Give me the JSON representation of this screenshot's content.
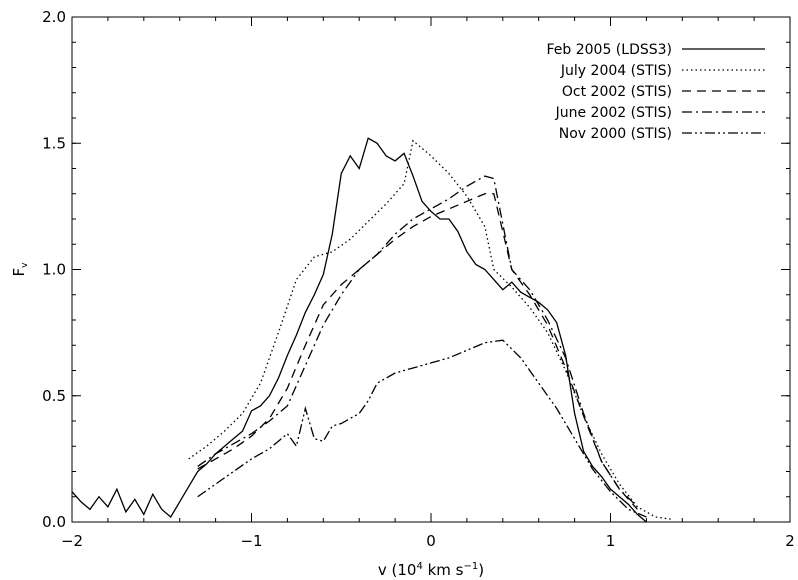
{
  "chart_data": {
    "type": "line",
    "title": "",
    "xlabel_prefix": "v (10",
    "xlabel_exp1": "4",
    "xlabel_mid": " km s",
    "xlabel_exp2": "−1",
    "xlabel_suffix": ")",
    "ylabel_main": "F",
    "ylabel_sub": "v",
    "xlim": [
      -2,
      2
    ],
    "ylim": [
      0,
      2
    ],
    "x_ticks": [
      -2,
      -1,
      0,
      1,
      2
    ],
    "x_tick_labels": [
      "−2",
      "−1",
      "0",
      "1",
      "2"
    ],
    "y_ticks": [
      0,
      0.5,
      1,
      1.5,
      2
    ],
    "y_tick_labels": [
      "0.0",
      "0.5",
      "1.0",
      "1.5",
      "2.0"
    ],
    "grid": false,
    "legend_position": "top-right",
    "series": [
      {
        "name": "Feb 2005 (LDSS3)",
        "style": "solid",
        "points": [
          [
            -2.0,
            0.12
          ],
          [
            -1.95,
            0.08
          ],
          [
            -1.9,
            0.05
          ],
          [
            -1.85,
            0.1
          ],
          [
            -1.8,
            0.06
          ],
          [
            -1.75,
            0.13
          ],
          [
            -1.7,
            0.04
          ],
          [
            -1.65,
            0.09
          ],
          [
            -1.6,
            0.03
          ],
          [
            -1.55,
            0.11
          ],
          [
            -1.5,
            0.05
          ],
          [
            -1.45,
            0.02
          ],
          [
            -1.4,
            0.08
          ],
          [
            -1.35,
            0.14
          ],
          [
            -1.3,
            0.2
          ],
          [
            -1.25,
            0.23
          ],
          [
            -1.2,
            0.27
          ],
          [
            -1.15,
            0.3
          ],
          [
            -1.1,
            0.33
          ],
          [
            -1.05,
            0.36
          ],
          [
            -1.0,
            0.44
          ],
          [
            -0.95,
            0.46
          ],
          [
            -0.9,
            0.5
          ],
          [
            -0.85,
            0.57
          ],
          [
            -0.8,
            0.66
          ],
          [
            -0.75,
            0.74
          ],
          [
            -0.7,
            0.83
          ],
          [
            -0.65,
            0.9
          ],
          [
            -0.6,
            0.98
          ],
          [
            -0.55,
            1.14
          ],
          [
            -0.5,
            1.38
          ],
          [
            -0.45,
            1.45
          ],
          [
            -0.4,
            1.4
          ],
          [
            -0.35,
            1.52
          ],
          [
            -0.3,
            1.5
          ],
          [
            -0.25,
            1.45
          ],
          [
            -0.2,
            1.43
          ],
          [
            -0.15,
            1.46
          ],
          [
            -0.1,
            1.37
          ],
          [
            -0.05,
            1.27
          ],
          [
            0.0,
            1.23
          ],
          [
            0.05,
            1.2
          ],
          [
            0.1,
            1.2
          ],
          [
            0.15,
            1.15
          ],
          [
            0.2,
            1.07
          ],
          [
            0.25,
            1.02
          ],
          [
            0.3,
            1.0
          ],
          [
            0.35,
            0.96
          ],
          [
            0.4,
            0.92
          ],
          [
            0.45,
            0.95
          ],
          [
            0.5,
            0.91
          ],
          [
            0.55,
            0.89
          ],
          [
            0.6,
            0.87
          ],
          [
            0.65,
            0.84
          ],
          [
            0.7,
            0.79
          ],
          [
            0.75,
            0.66
          ],
          [
            0.8,
            0.43
          ],
          [
            0.85,
            0.28
          ],
          [
            0.9,
            0.22
          ],
          [
            0.95,
            0.18
          ],
          [
            1.0,
            0.13
          ],
          [
            1.05,
            0.1
          ],
          [
            1.1,
            0.07
          ],
          [
            1.15,
            0.03
          ],
          [
            1.2,
            0.0
          ]
        ]
      },
      {
        "name": "July 2004 (STIS)",
        "style": "dotted",
        "points": [
          [
            -1.35,
            0.25
          ],
          [
            -1.25,
            0.3
          ],
          [
            -1.15,
            0.36
          ],
          [
            -1.05,
            0.43
          ],
          [
            -0.95,
            0.55
          ],
          [
            -0.85,
            0.75
          ],
          [
            -0.75,
            0.96
          ],
          [
            -0.65,
            1.05
          ],
          [
            -0.55,
            1.07
          ],
          [
            -0.45,
            1.12
          ],
          [
            -0.35,
            1.19
          ],
          [
            -0.25,
            1.26
          ],
          [
            -0.15,
            1.34
          ],
          [
            -0.1,
            1.51
          ],
          [
            0.0,
            1.45
          ],
          [
            0.1,
            1.38
          ],
          [
            0.2,
            1.29
          ],
          [
            0.3,
            1.17
          ],
          [
            0.35,
            1.0
          ],
          [
            0.45,
            0.93
          ],
          [
            0.55,
            0.85
          ],
          [
            0.65,
            0.75
          ],
          [
            0.75,
            0.6
          ],
          [
            0.85,
            0.42
          ],
          [
            0.95,
            0.27
          ],
          [
            1.05,
            0.15
          ],
          [
            1.15,
            0.06
          ],
          [
            1.25,
            0.02
          ],
          [
            1.35,
            0.01
          ]
        ]
      },
      {
        "name": "Oct 2002 (STIS)",
        "style": "dashed",
        "points": [
          [
            -1.3,
            0.21
          ],
          [
            -1.2,
            0.25
          ],
          [
            -1.1,
            0.29
          ],
          [
            -1.0,
            0.34
          ],
          [
            -0.9,
            0.41
          ],
          [
            -0.8,
            0.53
          ],
          [
            -0.7,
            0.7
          ],
          [
            -0.6,
            0.86
          ],
          [
            -0.5,
            0.94
          ],
          [
            -0.4,
            1.0
          ],
          [
            -0.3,
            1.06
          ],
          [
            -0.2,
            1.12
          ],
          [
            -0.1,
            1.17
          ],
          [
            0.0,
            1.21
          ],
          [
            0.1,
            1.24
          ],
          [
            0.2,
            1.27
          ],
          [
            0.3,
            1.3
          ],
          [
            0.35,
            1.3
          ],
          [
            0.45,
            1.0
          ],
          [
            0.55,
            0.9
          ],
          [
            0.65,
            0.78
          ],
          [
            0.75,
            0.61
          ],
          [
            0.85,
            0.42
          ],
          [
            0.95,
            0.24
          ],
          [
            1.05,
            0.13
          ],
          [
            1.15,
            0.05
          ]
        ]
      },
      {
        "name": "June 2002 (STIS)",
        "style": "dashdot",
        "points": [
          [
            -1.3,
            0.22
          ],
          [
            -1.2,
            0.27
          ],
          [
            -1.1,
            0.31
          ],
          [
            -1.0,
            0.35
          ],
          [
            -0.9,
            0.4
          ],
          [
            -0.8,
            0.46
          ],
          [
            -0.7,
            0.62
          ],
          [
            -0.6,
            0.78
          ],
          [
            -0.5,
            0.9
          ],
          [
            -0.4,
            1.0
          ],
          [
            -0.3,
            1.06
          ],
          [
            -0.2,
            1.14
          ],
          [
            -0.1,
            1.2
          ],
          [
            0.0,
            1.24
          ],
          [
            0.1,
            1.28
          ],
          [
            0.2,
            1.33
          ],
          [
            0.3,
            1.37
          ],
          [
            0.35,
            1.36
          ],
          [
            0.45,
            1.0
          ],
          [
            0.55,
            0.92
          ],
          [
            0.65,
            0.8
          ],
          [
            0.75,
            0.65
          ],
          [
            0.85,
            0.43
          ],
          [
            0.95,
            0.24
          ],
          [
            1.05,
            0.13
          ],
          [
            1.15,
            0.06
          ]
        ]
      },
      {
        "name": "Nov 2000 (STIS)",
        "style": "dashdotdot",
        "points": [
          [
            -1.3,
            0.1
          ],
          [
            -1.2,
            0.15
          ],
          [
            -1.1,
            0.2
          ],
          [
            -1.0,
            0.25
          ],
          [
            -0.9,
            0.29
          ],
          [
            -0.8,
            0.35
          ],
          [
            -0.75,
            0.3
          ],
          [
            -0.7,
            0.45
          ],
          [
            -0.65,
            0.33
          ],
          [
            -0.6,
            0.32
          ],
          [
            -0.55,
            0.38
          ],
          [
            -0.5,
            0.39
          ],
          [
            -0.45,
            0.41
          ],
          [
            -0.4,
            0.43
          ],
          [
            -0.35,
            0.48
          ],
          [
            -0.3,
            0.55
          ],
          [
            -0.2,
            0.59
          ],
          [
            -0.1,
            0.61
          ],
          [
            0.0,
            0.63
          ],
          [
            0.1,
            0.65
          ],
          [
            0.2,
            0.68
          ],
          [
            0.3,
            0.71
          ],
          [
            0.4,
            0.72
          ],
          [
            0.5,
            0.65
          ],
          [
            0.6,
            0.55
          ],
          [
            0.7,
            0.45
          ],
          [
            0.8,
            0.33
          ],
          [
            0.9,
            0.21
          ],
          [
            1.0,
            0.12
          ],
          [
            1.1,
            0.05
          ],
          [
            1.2,
            0.02
          ]
        ]
      }
    ]
  }
}
